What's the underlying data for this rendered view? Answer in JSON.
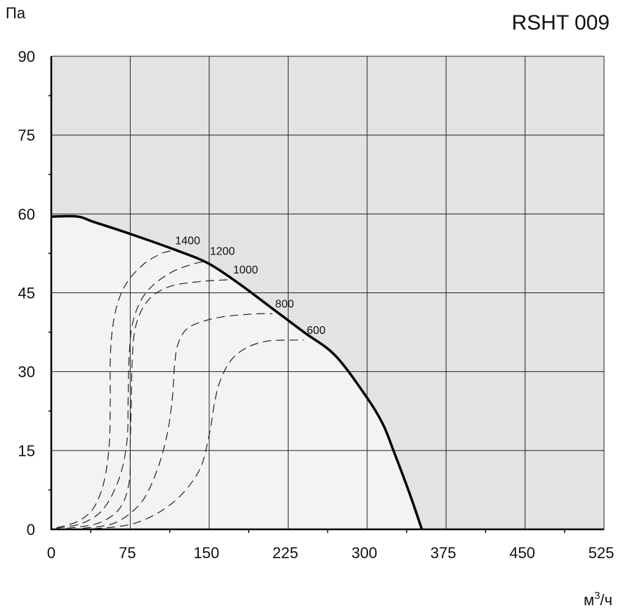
{
  "chart_data": {
    "type": "line",
    "title": "RSHT 009",
    "ylabel": "Па",
    "xlabel": {
      "base": "м",
      "sup": "3",
      "suffix": "/ч"
    },
    "xlim": [
      0,
      525
    ],
    "ylim": [
      0,
      90
    ],
    "xticks": [
      0,
      75,
      150,
      225,
      300,
      375,
      450,
      525
    ],
    "yticks": [
      0,
      15,
      30,
      45,
      60,
      75,
      90
    ],
    "grid": true,
    "colors": {
      "outside": "#e4e2e4",
      "inside": "#f3f3f3",
      "grid": "#222222",
      "curve": "#000000"
    },
    "fan_curve": {
      "x": [
        0,
        25,
        40,
        75,
        120,
        150,
        180,
        210,
        240,
        270,
        300,
        315,
        325,
        340,
        352
      ],
      "y": [
        59.5,
        59.5,
        58.5,
        56.2,
        53,
        50.5,
        46.5,
        42,
        37.5,
        33,
        25,
        20,
        15,
        7,
        0
      ]
    },
    "series": [
      {
        "name": "1400",
        "x": [
          5,
          25,
          40,
          50,
          55,
          56,
          56,
          58,
          63,
          72,
          88,
          105,
          115
        ],
        "y": [
          0.3,
          1.5,
          4,
          9,
          16,
          24,
          32,
          38,
          43,
          47,
          50.5,
          52.5,
          53
        ]
      },
      {
        "name": "1200",
        "x": [
          5,
          30,
          50,
          65,
          72,
          73,
          74,
          77,
          85,
          97,
          115,
          135,
          148
        ],
        "y": [
          0.2,
          1.2,
          4,
          10,
          17,
          25,
          33,
          39,
          43.5,
          46.5,
          49,
          50.5,
          51
        ]
      },
      {
        "name": "1000",
        "x": [
          15,
          45,
          65,
          74,
          75,
          76,
          77,
          80,
          88,
          100,
          118,
          145,
          170
        ],
        "y": [
          0.2,
          1.2,
          4,
          9,
          16,
          24,
          33,
          38.5,
          42.5,
          45,
          46.5,
          47.2,
          47.5
        ]
      },
      {
        "name": "800",
        "x": [
          30,
          60,
          85,
          100,
          110,
          115,
          117,
          120,
          128,
          143,
          165,
          195,
          210
        ],
        "y": [
          0.2,
          1.2,
          5,
          11,
          18,
          25,
          31,
          35,
          38,
          39.5,
          40.5,
          41,
          41
        ]
      },
      {
        "name": "600",
        "x": [
          40,
          80,
          115,
          140,
          150,
          155,
          160,
          170,
          185,
          205,
          230,
          240
        ],
        "y": [
          0.1,
          1.2,
          5,
          11,
          18,
          24,
          28,
          32,
          34.5,
          35.8,
          36,
          36
        ]
      }
    ]
  }
}
